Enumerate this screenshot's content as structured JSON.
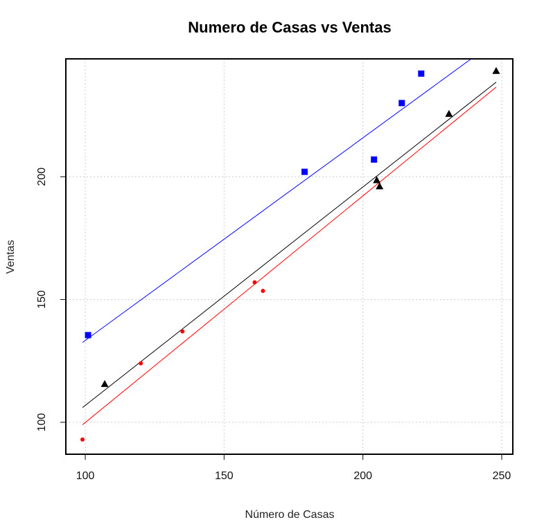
{
  "chart_data": {
    "type": "scatter",
    "title": "Numero de Casas vs Ventas",
    "xlabel": "Número de Casas",
    "ylabel": "Ventas",
    "xlim": [
      93,
      254
    ],
    "ylim": [
      87,
      248
    ],
    "x_ticks": [
      100,
      150,
      200,
      250
    ],
    "y_ticks": [
      100,
      150,
      200
    ],
    "grid": true,
    "legend": "none",
    "series": [
      {
        "marker": "square",
        "color": "#0000ff",
        "points": [
          [
            101,
            135.5
          ],
          [
            179,
            202
          ],
          [
            204,
            207
          ],
          [
            214,
            230
          ],
          [
            221,
            242
          ]
        ],
        "fit_line": [
          [
            99,
            132.5
          ],
          [
            239,
            248
          ]
        ]
      },
      {
        "marker": "triangle",
        "color": "#000000",
        "points": [
          [
            107,
            115.5
          ],
          [
            205,
            198.5
          ],
          [
            206,
            196
          ],
          [
            231,
            225.5
          ],
          [
            248,
            243
          ]
        ],
        "fit_line": [
          [
            99,
            106
          ],
          [
            248,
            238.5
          ]
        ]
      },
      {
        "marker": "circle",
        "color": "#ff0000",
        "points": [
          [
            99,
            93
          ],
          [
            120,
            124
          ],
          [
            135,
            137
          ],
          [
            161,
            157
          ],
          [
            164,
            153.5
          ]
        ],
        "fit_line": [
          [
            99,
            99
          ],
          [
            248,
            236.5
          ]
        ]
      }
    ]
  }
}
